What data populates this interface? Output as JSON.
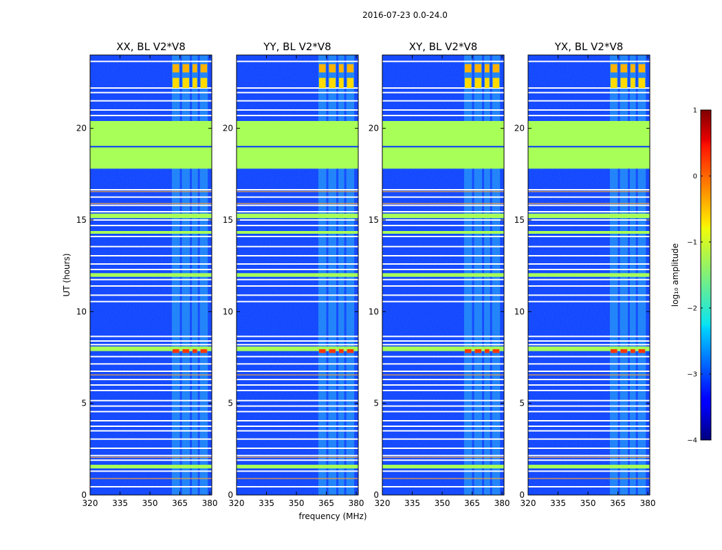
{
  "figure_title": "2016-07-23 0.0-24.0",
  "chart_data": {
    "type": "heatmap",
    "title": "2016-07-23 0.0-24.0",
    "xlabel": "frequency (MHz)",
    "ylabel": "UT (hours)",
    "xlim": [
      320,
      381
    ],
    "ylim": [
      0,
      24
    ],
    "x_ticks": [
      320,
      335,
      350,
      365,
      380
    ],
    "y_ticks": [
      0,
      5,
      10,
      15,
      20
    ],
    "panels": [
      {
        "name": "XX",
        "title": "XX, BL V2*V8"
      },
      {
        "name": "YY",
        "title": "YY, BL V2*V8"
      },
      {
        "name": "XY",
        "title": "XY, BL V2*V8"
      },
      {
        "name": "YX",
        "title": "YX, BL V2*V8"
      }
    ],
    "background_log_amplitude": -3.1,
    "rfi_channel_blocks_mhz": [
      [
        361,
        365
      ],
      [
        366,
        370
      ],
      [
        371,
        374
      ],
      [
        375,
        379
      ]
    ],
    "flagged_time_band_hours": [
      17.8,
      20.4
    ],
    "flagged_time_band_log_amplitude": -1.3,
    "flagged_gap_hours": [
      19.0
    ],
    "white_flag_lines_hours": [
      0.45,
      1.3,
      1.9,
      2.15,
      2.55,
      3.05,
      3.5,
      3.75,
      4.05,
      4.55,
      4.85,
      5.15,
      5.7,
      6.0,
      6.3,
      6.75,
      7.15,
      7.55,
      8.2,
      8.4,
      8.65,
      10.55,
      10.9,
      11.4,
      11.75,
      12.3,
      12.6,
      13.05,
      13.55,
      14.1,
      14.7,
      15.0,
      15.45,
      15.8,
      16.25,
      16.65,
      20.7,
      21.0,
      21.5,
      21.95,
      22.2,
      23.65
    ],
    "green_stripes_hours": [
      [
        1.45,
        1.65
      ],
      [
        7.85,
        8.1
      ],
      [
        11.9,
        12.1
      ],
      [
        14.25,
        14.4
      ],
      [
        15.1,
        15.35
      ]
    ],
    "warm_stripes_hours": [
      0.9,
      2.05,
      6.55,
      15.9,
      16.55
    ],
    "bright_blocks": [
      {
        "t": [
          7.75,
          7.95
        ],
        "log_amplitude": 0.1
      },
      {
        "t": [
          22.2,
          22.75
        ],
        "log_amplitude": -0.7
      },
      {
        "t": [
          23.05,
          23.5
        ],
        "log_amplitude": -0.5
      }
    ]
  },
  "colorbar": {
    "label": "log₁₀ amplitude",
    "range": [
      -4,
      1
    ],
    "ticks": [
      "1",
      "0",
      "−1",
      "−2",
      "−3",
      "−4"
    ],
    "tick_values": [
      1,
      0,
      -1,
      -2,
      -3,
      -4
    ]
  }
}
